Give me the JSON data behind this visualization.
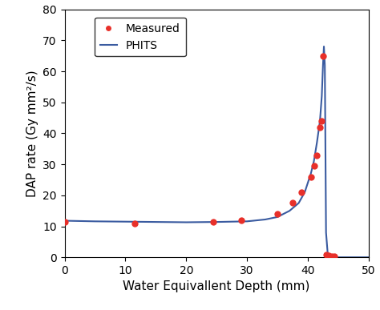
{
  "title": "",
  "xlabel": "Water Equivallent Depth (mm)",
  "ylabel": "DAP rate (Gy mm²/s)",
  "xlim": [
    0,
    50
  ],
  "ylim": [
    0,
    80
  ],
  "xticks": [
    0,
    10,
    20,
    30,
    40,
    50
  ],
  "yticks": [
    0,
    10,
    20,
    30,
    40,
    50,
    60,
    70,
    80
  ],
  "measured_x": [
    0.1,
    11.5,
    24.5,
    29.0,
    35.0,
    37.5,
    39.0,
    40.5,
    41.0,
    41.5,
    42.0,
    42.3,
    42.5,
    43.0,
    43.5,
    44.0,
    44.3
  ],
  "measured_y": [
    11.5,
    10.8,
    11.5,
    12.0,
    14.0,
    17.5,
    21.0,
    26.0,
    29.5,
    33.0,
    42.0,
    44.0,
    65.0,
    0.8,
    0.5,
    0.3,
    0.2
  ],
  "phits_x": [
    0.0,
    5.0,
    10.0,
    15.0,
    20.0,
    25.0,
    30.0,
    33.0,
    35.0,
    37.0,
    38.5,
    39.5,
    40.5,
    41.0,
    41.5,
    42.0,
    42.3,
    42.5,
    42.65,
    42.8,
    43.0,
    43.3,
    43.8,
    44.5,
    46.0,
    50.0
  ],
  "phits_y": [
    11.8,
    11.6,
    11.5,
    11.4,
    11.3,
    11.4,
    11.6,
    12.2,
    13.0,
    15.0,
    17.5,
    21.0,
    27.0,
    31.0,
    37.0,
    44.0,
    52.0,
    62.0,
    68.0,
    62.0,
    8.0,
    0.5,
    0.1,
    0.0,
    0.0,
    0.0
  ],
  "measured_color": "#e8302a",
  "phits_color": "#3a5ba0",
  "background_color": "#ffffff",
  "legend_measured": "Measured",
  "legend_phits": "PHITS",
  "marker_size": 6,
  "line_width": 1.5,
  "font_size_labels": 11,
  "font_size_ticks": 10,
  "font_size_legend": 10
}
